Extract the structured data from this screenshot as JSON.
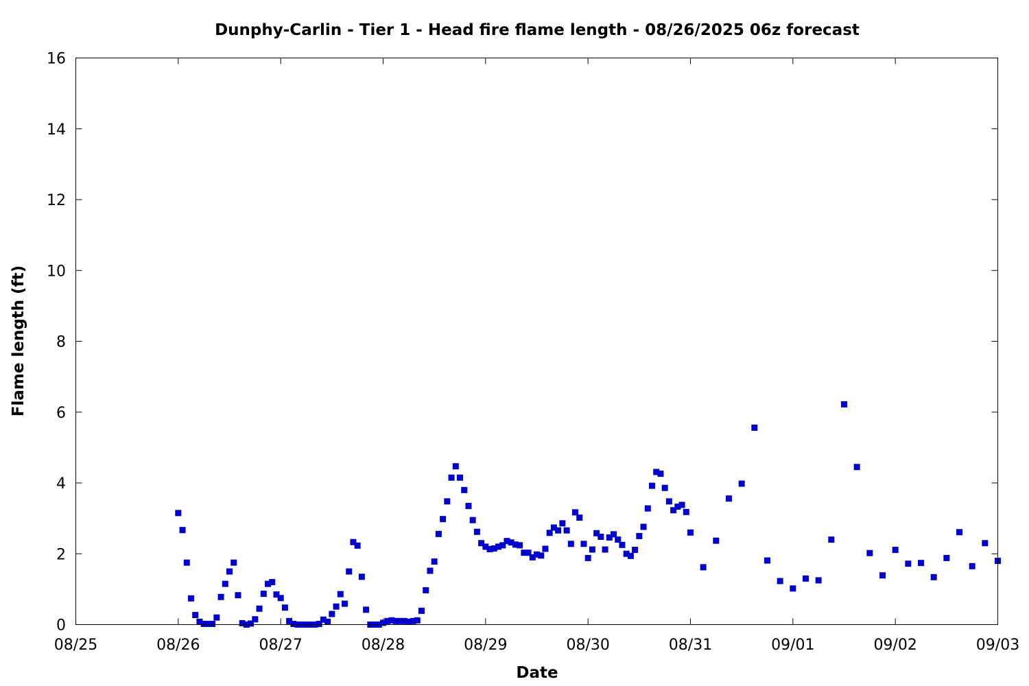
{
  "chart_data": {
    "type": "scatter",
    "title": "Dunphy-Carlin - Tier 1 - Head fire flame length - 08/26/2025 06z forecast",
    "xlabel": "Date",
    "ylabel": "Flame length (ft)",
    "xlim": [
      "08/25",
      "09/03"
    ],
    "ylim": [
      0,
      16
    ],
    "x_ticks": [
      "08/25",
      "08/26",
      "08/27",
      "08/28",
      "08/29",
      "08/30",
      "08/31",
      "09/01",
      "09/02",
      "09/03"
    ],
    "y_ticks": [
      "0",
      "2",
      "4",
      "6",
      "8",
      "10",
      "12",
      "14",
      "16"
    ],
    "grid": false,
    "legend": "none",
    "marker_color": "#0000cc",
    "series": [
      {
        "x": [
          "08/26 00:00",
          "08/26 01:00",
          "08/26 02:00",
          "08/26 03:00",
          "08/26 04:00",
          "08/26 05:00",
          "08/26 06:00",
          "08/26 07:00",
          "08/26 08:00",
          "08/26 09:00",
          "08/26 10:00",
          "08/26 11:00",
          "08/26 12:00",
          "08/26 13:00",
          "08/26 14:00",
          "08/26 15:00",
          "08/26 16:00",
          "08/26 17:00",
          "08/26 18:00",
          "08/26 19:00",
          "08/26 20:00",
          "08/26 21:00",
          "08/26 22:00",
          "08/26 23:00",
          "08/27 00:00",
          "08/27 01:00",
          "08/27 02:00",
          "08/27 03:00",
          "08/27 04:00",
          "08/27 05:00",
          "08/27 06:00",
          "08/27 07:00",
          "08/27 08:00",
          "08/27 09:00",
          "08/27 10:00",
          "08/27 11:00",
          "08/27 12:00",
          "08/27 13:00",
          "08/27 14:00",
          "08/27 15:00",
          "08/27 16:00",
          "08/27 17:00",
          "08/27 18:00",
          "08/27 19:00",
          "08/27 20:00",
          "08/27 21:00",
          "08/27 22:00",
          "08/27 23:00",
          "08/28 00:00",
          "08/28 01:00",
          "08/28 02:00",
          "08/28 03:00",
          "08/28 04:00",
          "08/28 05:00",
          "08/28 06:00",
          "08/28 07:00",
          "08/28 08:00",
          "08/28 09:00",
          "08/28 10:00",
          "08/28 11:00",
          "08/28 12:00",
          "08/28 13:00",
          "08/28 14:00",
          "08/28 15:00",
          "08/28 16:00",
          "08/28 17:00",
          "08/28 18:00",
          "08/28 19:00",
          "08/28 20:00",
          "08/28 21:00",
          "08/28 22:00",
          "08/28 23:00",
          "08/29 00:00",
          "08/29 01:00",
          "08/29 02:00",
          "08/29 03:00",
          "08/29 04:00",
          "08/29 05:00",
          "08/29 06:00",
          "08/29 07:00",
          "08/29 08:00",
          "08/29 09:00",
          "08/29 10:00",
          "08/29 11:00",
          "08/29 12:00",
          "08/29 13:00",
          "08/29 14:00",
          "08/29 15:00",
          "08/29 16:00",
          "08/29 17:00",
          "08/29 18:00",
          "08/29 19:00",
          "08/29 20:00",
          "08/29 21:00",
          "08/29 22:00",
          "08/29 23:00",
          "08/30 00:00",
          "08/30 01:00",
          "08/30 02:00",
          "08/30 03:00",
          "08/30 04:00",
          "08/30 05:00",
          "08/30 06:00",
          "08/30 07:00",
          "08/30 08:00",
          "08/30 09:00",
          "08/30 10:00",
          "08/30 11:00",
          "08/30 12:00",
          "08/30 13:00",
          "08/30 14:00",
          "08/30 15:00",
          "08/30 16:00",
          "08/30 17:00",
          "08/30 18:00",
          "08/30 19:00",
          "08/30 20:00",
          "08/30 21:00",
          "08/30 22:00",
          "08/30 23:00",
          "08/31 00:00",
          "08/31 03:00",
          "08/31 06:00",
          "08/31 09:00",
          "08/31 12:00",
          "08/31 15:00",
          "08/31 18:00",
          "08/31 21:00",
          "09/01 00:00",
          "09/01 03:00",
          "09/01 06:00",
          "09/01 09:00",
          "09/01 12:00",
          "09/01 15:00",
          "09/01 18:00",
          "09/01 21:00",
          "09/02 00:00",
          "09/02 03:00",
          "09/02 06:00",
          "09/02 09:00",
          "09/02 12:00",
          "09/02 15:00",
          "09/02 18:00",
          "09/02 21:00",
          "09/03 00:00"
        ],
        "y": [
          3.15,
          2.67,
          1.75,
          0.74,
          0.27,
          0.08,
          0.02,
          0.02,
          0.02,
          0.2,
          0.78,
          1.15,
          1.5,
          1.75,
          0.83,
          0.04,
          0.0,
          0.03,
          0.15,
          0.45,
          0.87,
          1.15,
          1.2,
          0.85,
          0.75,
          0.48,
          0.1,
          0.02,
          0.0,
          0.0,
          0.0,
          0.0,
          0.0,
          0.02,
          0.14,
          0.08,
          0.3,
          0.51,
          0.86,
          0.59,
          1.5,
          2.33,
          2.23,
          1.35,
          0.42,
          0.0,
          0.0,
          0.0,
          0.05,
          0.1,
          0.12,
          0.1,
          0.1,
          0.1,
          0.08,
          0.1,
          0.12,
          0.39,
          0.97,
          1.52,
          1.78,
          2.56,
          2.98,
          3.48,
          4.15,
          4.47,
          4.15,
          3.8,
          3.35,
          2.95,
          2.62,
          2.3,
          2.2,
          2.13,
          2.15,
          2.2,
          2.24,
          2.36,
          2.32,
          2.26,
          2.24,
          2.03,
          2.03,
          1.9,
          1.98,
          1.95,
          2.14,
          2.59,
          2.74,
          2.66,
          2.86,
          2.66,
          2.28,
          3.17,
          3.02,
          2.28,
          1.88,
          2.12,
          2.58,
          2.48,
          2.12,
          2.46,
          2.55,
          2.4,
          2.25,
          2.0,
          1.94,
          2.11,
          2.5,
          2.76,
          3.28,
          3.92,
          4.31,
          4.26,
          3.86,
          3.48,
          3.23,
          3.33,
          3.38,
          3.18,
          2.6,
          1.62,
          2.37,
          3.56,
          3.98,
          5.56,
          1.81,
          1.23,
          1.02,
          1.3,
          1.25,
          2.4,
          6.22,
          4.45,
          2.02,
          1.39,
          2.11,
          1.72,
          1.74,
          1.34,
          1.88,
          2.61,
          1.65,
          2.3,
          1.8
        ]
      }
    ]
  }
}
